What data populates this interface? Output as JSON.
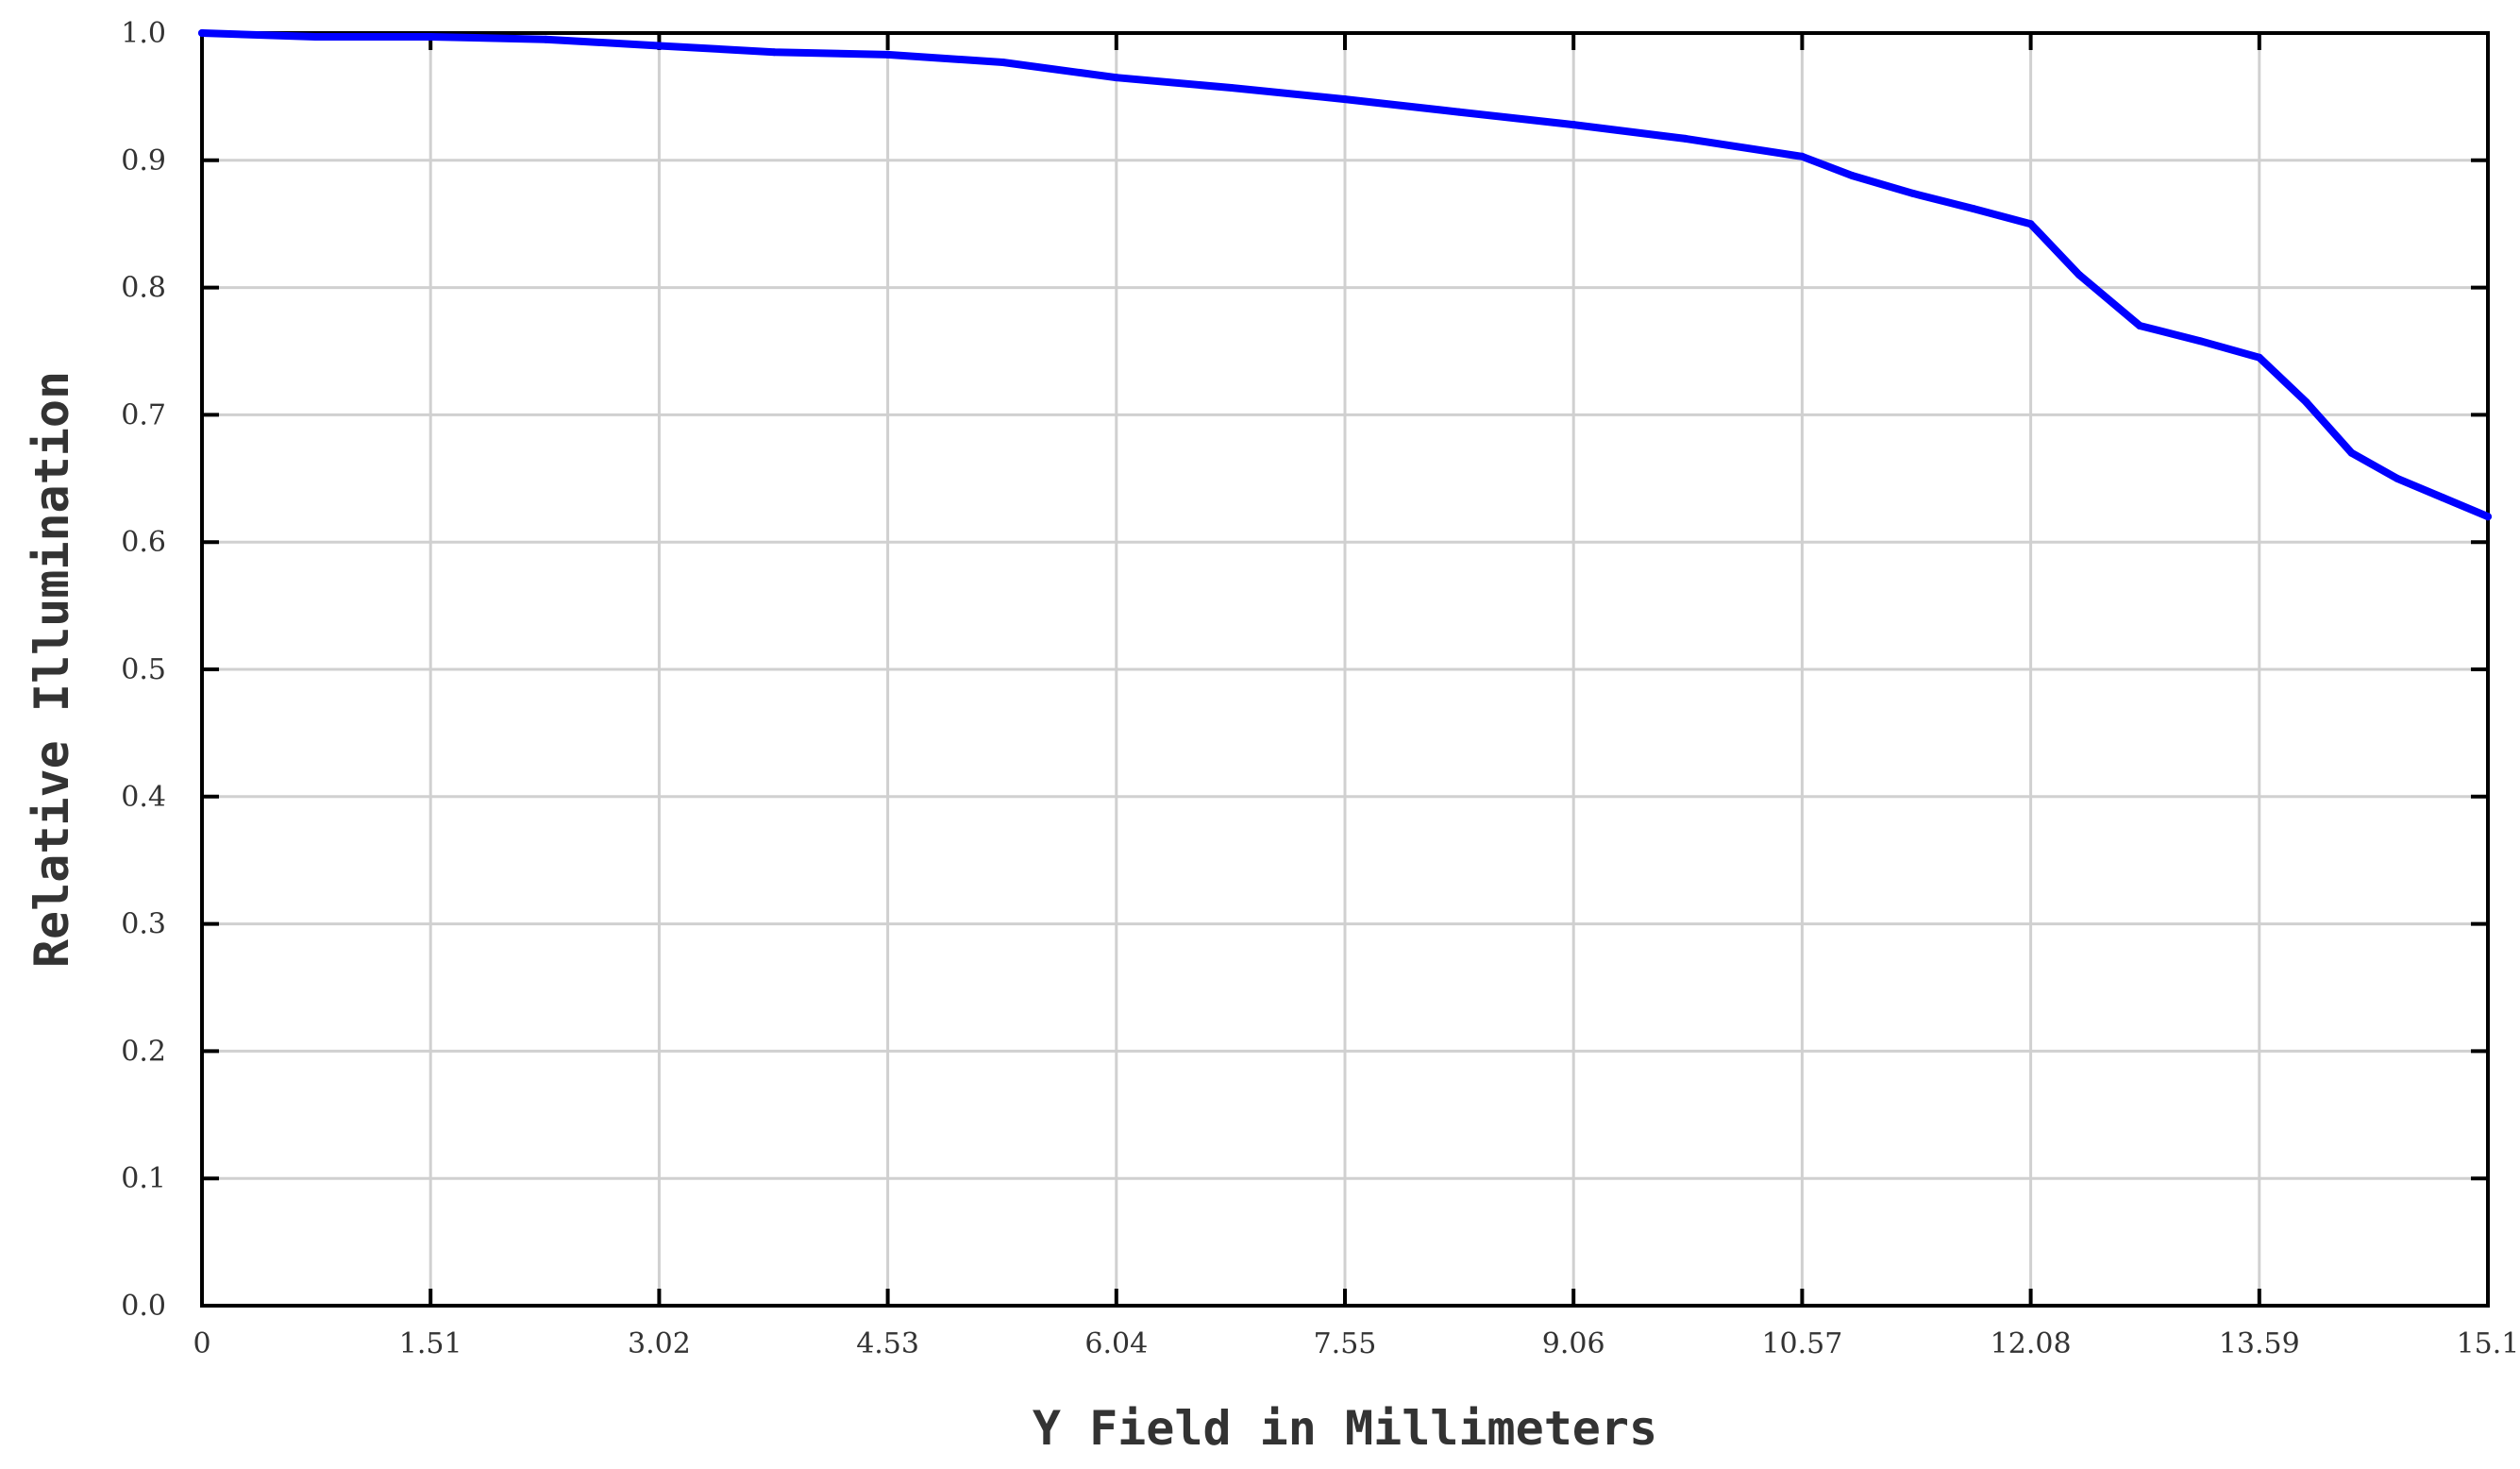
{
  "chart_data": {
    "type": "line",
    "title": "",
    "xlabel": "Y Field in Millimeters",
    "ylabel": "Relative Illumination",
    "xlim": [
      0,
      15.1
    ],
    "ylim": [
      0,
      1.0
    ],
    "grid": true,
    "x_ticks": [
      0,
      1.51,
      3.02,
      4.53,
      6.04,
      7.55,
      9.06,
      10.57,
      12.08,
      13.59,
      15.1
    ],
    "x_tick_labels": [
      "0",
      "1.51",
      "3.02",
      "4.53",
      "6.04",
      "7.55",
      "9.06",
      "10.57",
      "12.08",
      "13.59",
      "15.1"
    ],
    "y_ticks": [
      0,
      0.1,
      0.2,
      0.3,
      0.4,
      0.5,
      0.6,
      0.7,
      0.8,
      0.9,
      1.0
    ],
    "y_tick_labels": [
      "0.0",
      "0.1",
      "0.2",
      "0.3",
      "0.4",
      "0.5",
      "0.6",
      "0.7",
      "0.8",
      "0.9",
      "1.0"
    ],
    "series": [
      {
        "color": "#0000ff",
        "x": [
          0,
          0.75,
          1.51,
          2.27,
          3.02,
          3.78,
          4.53,
          5.29,
          6.04,
          6.8,
          7.55,
          8.3,
          9.06,
          9.8,
          10.57,
          10.9,
          11.3,
          11.7,
          12.08,
          12.4,
          12.8,
          13.2,
          13.59,
          13.9,
          14.2,
          14.5,
          14.8,
          15.1
        ],
        "y": [
          1.0,
          0.997,
          0.997,
          0.995,
          0.99,
          0.985,
          0.983,
          0.977,
          0.965,
          0.957,
          0.948,
          0.938,
          0.928,
          0.917,
          0.903,
          0.888,
          0.874,
          0.862,
          0.85,
          0.81,
          0.77,
          0.758,
          0.745,
          0.71,
          0.67,
          0.65,
          0.635,
          0.62
        ]
      }
    ]
  }
}
